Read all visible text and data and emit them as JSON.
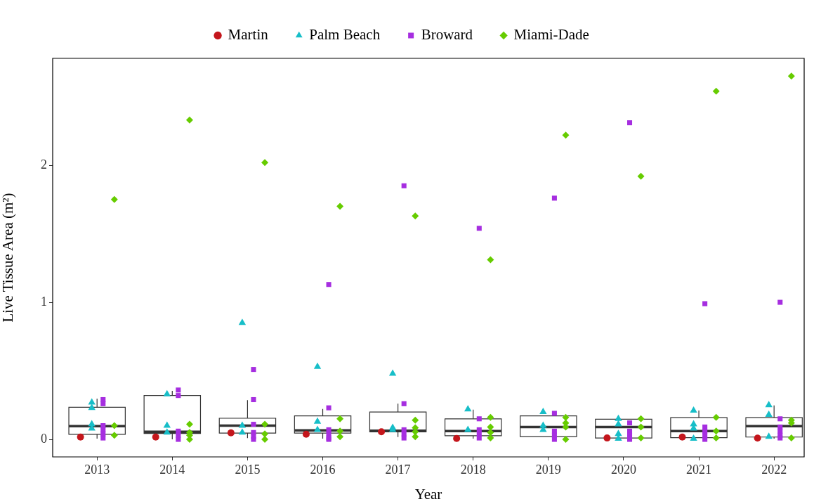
{
  "chart_data": {
    "type": "box",
    "xlabel": "Year",
    "ylabel": "Live Tissue Area (m²)",
    "legend": "top",
    "grid": false,
    "x": [
      2013,
      2014,
      2015,
      2016,
      2017,
      2018,
      2019,
      2020,
      2021,
      2022
    ],
    "xlim": [
      2012.41,
      2022.4
    ],
    "xticks": [
      2013,
      2014,
      2015,
      2016,
      2017,
      2018,
      2019,
      2020,
      2021,
      2022
    ],
    "ylim": [
      -0.128,
      2.78
    ],
    "yticks": [
      0,
      1,
      2
    ],
    "boxes": [
      {
        "low": 0.005,
        "q1": 0.037,
        "median": 0.097,
        "q3": 0.234,
        "high": 0.296
      },
      {
        "low": 0.0,
        "q1": 0.043,
        "median": 0.055,
        "q3": 0.32,
        "high": 0.354
      },
      {
        "low": 0.009,
        "q1": 0.046,
        "median": 0.1,
        "q3": 0.154,
        "high": 0.286
      },
      {
        "low": 0.005,
        "q1": 0.046,
        "median": 0.065,
        "q3": 0.171,
        "high": 0.222
      },
      {
        "low": 0.017,
        "q1": 0.055,
        "median": 0.063,
        "q3": 0.2,
        "high": 0.26
      },
      {
        "low": 0.005,
        "q1": 0.026,
        "median": 0.06,
        "q3": 0.15,
        "high": 0.217
      },
      {
        "low": 0.02,
        "q1": 0.02,
        "median": 0.09,
        "q3": 0.171,
        "high": 0.171
      },
      {
        "low": 0.01,
        "q1": 0.01,
        "median": 0.09,
        "q3": 0.147,
        "high": 0.147
      },
      {
        "low": 0.012,
        "q1": 0.012,
        "median": 0.06,
        "q3": 0.159,
        "high": 0.21
      },
      {
        "low": 0.005,
        "q1": 0.017,
        "median": 0.097,
        "q3": 0.159,
        "high": 0.248
      }
    ],
    "series": [
      {
        "name": "Martin",
        "type": "scatter",
        "marker": "circle",
        "color": "#c4161c",
        "x": [
          2012.78,
          2013.78,
          2014.78,
          2015.78,
          2016.78,
          2017.78,
          2019.78,
          2020.78,
          2021.78
        ],
        "values": [
          0.017,
          0.017,
          0.048,
          0.037,
          0.055,
          0.007,
          0.01,
          0.017,
          0.009
        ]
      },
      {
        "name": "Palm Beach",
        "type": "scatter",
        "marker": "triangle",
        "color": "#17bec8",
        "x": [
          2012.93,
          2012.93,
          2012.93,
          2012.93,
          2013.93,
          2013.93,
          2013.93,
          2014.93,
          2014.93,
          2014.93,
          2015.93,
          2015.93,
          2015.93,
          2016.93,
          2016.93,
          2016.93,
          2017.93,
          2017.93,
          2018.93,
          2018.93,
          2018.93,
          2019.93,
          2019.93,
          2019.93,
          2019.93,
          2020.93,
          2020.93,
          2020.93,
          2020.93,
          2021.93,
          2021.93,
          2021.93
        ],
        "values": [
          0.27,
          0.23,
          0.11,
          0.08,
          0.33,
          0.1,
          0.05,
          0.85,
          0.1,
          0.05,
          0.53,
          0.13,
          0.07,
          0.48,
          0.085,
          0.07,
          0.22,
          0.07,
          0.2,
          0.1,
          0.07,
          0.15,
          0.11,
          0.04,
          0.005,
          0.21,
          0.11,
          0.08,
          0.005,
          0.25,
          0.18,
          0.02
        ]
      },
      {
        "name": "Broward",
        "type": "scatter",
        "marker": "square",
        "color": "#a62ee0",
        "x": [
          2013.08,
          2013.08,
          2013.08,
          2013.08,
          2013.08,
          2013.08,
          2014.08,
          2014.08,
          2014.08,
          2014.08,
          2014.08,
          2015.08,
          2015.08,
          2015.08,
          2015.08,
          2015.08,
          2015.08,
          2016.08,
          2016.08,
          2016.08,
          2016.08,
          2016.08,
          2016.08,
          2017.08,
          2017.08,
          2017.08,
          2017.08,
          2017.08,
          2018.08,
          2018.08,
          2018.08,
          2018.08,
          2018.08,
          2019.08,
          2019.08,
          2019.08,
          2019.08,
          2019.08,
          2020.08,
          2020.08,
          2020.08,
          2020.08,
          2020.08,
          2021.08,
          2021.08,
          2021.08,
          2021.08,
          2021.08,
          2022.08,
          2022.08,
          2022.08,
          2022.08,
          2022.08,
          2022.08
        ],
        "values": [
          0.29,
          0.26,
          0.1,
          0.07,
          0.04,
          0.01,
          0.36,
          0.32,
          0.06,
          0.03,
          0,
          0.51,
          0.29,
          0.11,
          0.05,
          0.02,
          0,
          1.13,
          0.23,
          0.07,
          0.04,
          0.01,
          0,
          1.85,
          0.26,
          0.07,
          0.04,
          0.01,
          1.54,
          0.15,
          0.07,
          0.04,
          0.01,
          1.76,
          0.19,
          0.06,
          0.03,
          0,
          2.31,
          0.12,
          0.06,
          0.03,
          0,
          0.99,
          0.09,
          0.06,
          0.03,
          0,
          1.0,
          0.15,
          0.09,
          0.06,
          0.03,
          0.01
        ]
      },
      {
        "name": "Miami-Dade",
        "type": "scatter",
        "marker": "diamond",
        "color": "#66cc00",
        "x": [
          2013.23,
          2013.23,
          2013.23,
          2014.23,
          2014.23,
          2014.23,
          2014.23,
          2014.23,
          2015.23,
          2015.23,
          2015.23,
          2015.23,
          2016.23,
          2016.23,
          2016.23,
          2016.23,
          2017.23,
          2017.23,
          2017.23,
          2017.23,
          2017.23,
          2018.23,
          2018.23,
          2018.23,
          2018.23,
          2018.23,
          2019.23,
          2019.23,
          2019.23,
          2019.23,
          2019.23,
          2020.23,
          2020.23,
          2020.23,
          2020.23,
          2021.23,
          2021.23,
          2021.23,
          2021.23,
          2022.23,
          2022.23,
          2022.23,
          2022.23
        ],
        "values": [
          1.75,
          0.1,
          0.03,
          2.33,
          0.11,
          0.05,
          0.03,
          0,
          2.02,
          0.11,
          0.04,
          0,
          1.7,
          0.15,
          0.06,
          0.02,
          1.63,
          0.14,
          0.085,
          0.055,
          0.02,
          1.31,
          0.16,
          0.09,
          0.05,
          0.01,
          2.22,
          0.16,
          0.12,
          0.09,
          0,
          1.92,
          0.15,
          0.09,
          0.01,
          2.54,
          0.16,
          0.06,
          0.01,
          2.65,
          0.14,
          0.12,
          0.01
        ]
      }
    ]
  }
}
